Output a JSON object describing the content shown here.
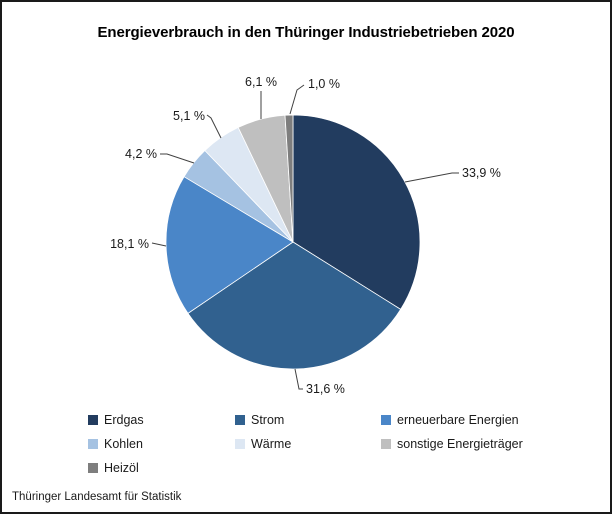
{
  "window": {
    "background": "#ffffff",
    "border_color": "#1a1a1a"
  },
  "footer": {
    "source": "Thüringer Landesamt für Statistik"
  },
  "chart_data": {
    "type": "pie",
    "title": "Energieverbrauch in den Thüringer Industriebetrieben 2020",
    "unit": "%",
    "total": 100.0,
    "start_angle": "12 o'clock",
    "direction": "clockwise",
    "legend_position": "bottom-left, 3 columns, row-major order",
    "label_format": "decimal comma with space before % (e.g. 33,9 %)",
    "label_color": "#1a1a1a",
    "leader_line_color": "#404040",
    "slices": [
      {
        "name": "Erdgas",
        "value": 33.9,
        "label": "33,9 %",
        "color": "#223C5F"
      },
      {
        "name": "Strom",
        "value": 31.6,
        "label": "31,6 %",
        "color": "#31618F"
      },
      {
        "name": "erneuerbare Energien",
        "value": 18.1,
        "label": "18,1 %",
        "color": "#4A86C8"
      },
      {
        "name": "Kohlen",
        "value": 4.2,
        "label": "4,2 %",
        "color": "#A5C2E2"
      },
      {
        "name": "Wärme",
        "value": 5.1,
        "label": "5,1 %",
        "color": "#DDE7F3"
      },
      {
        "name": "sonstige Energieträger",
        "value": 6.1,
        "label": "6,1 %",
        "color": "#BFBFBF"
      },
      {
        "name": "Heizöl",
        "value": 1.0,
        "label": "1,0 %",
        "color": "#7E7E7E"
      }
    ]
  }
}
